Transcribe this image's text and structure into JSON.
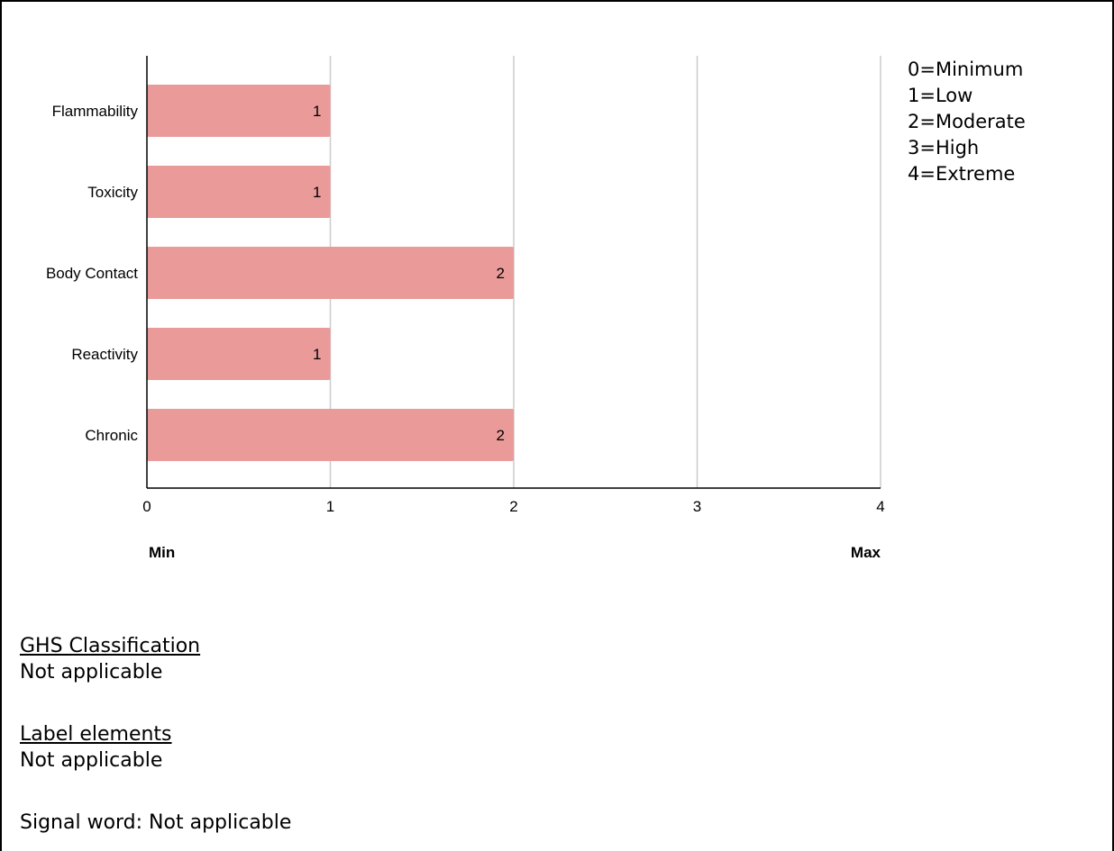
{
  "chart_data": {
    "type": "bar",
    "orientation": "horizontal",
    "categories": [
      "Flammability",
      "Toxicity",
      "Body Contact",
      "Reactivity",
      "Chronic"
    ],
    "values": [
      1,
      1,
      2,
      1,
      2
    ],
    "xlim": [
      0,
      4
    ],
    "xticks": [
      "0",
      "1",
      "2",
      "3",
      "4"
    ],
    "axis_end_labels": {
      "min": "Min",
      "max": "Max"
    },
    "grid": true,
    "bar_color": "#e99a99",
    "grid_color": "#cccccc"
  },
  "legend": {
    "items": [
      "0=Minimum",
      "1=Low",
      "2=Moderate",
      "3=High",
      "4=Extreme"
    ]
  },
  "ghs": {
    "heading": "GHS Classification",
    "value": "Not applicable"
  },
  "label_elements": {
    "heading": "Label elements",
    "value": "Not applicable"
  },
  "signal_word": {
    "text": "Signal word: Not applicable"
  }
}
